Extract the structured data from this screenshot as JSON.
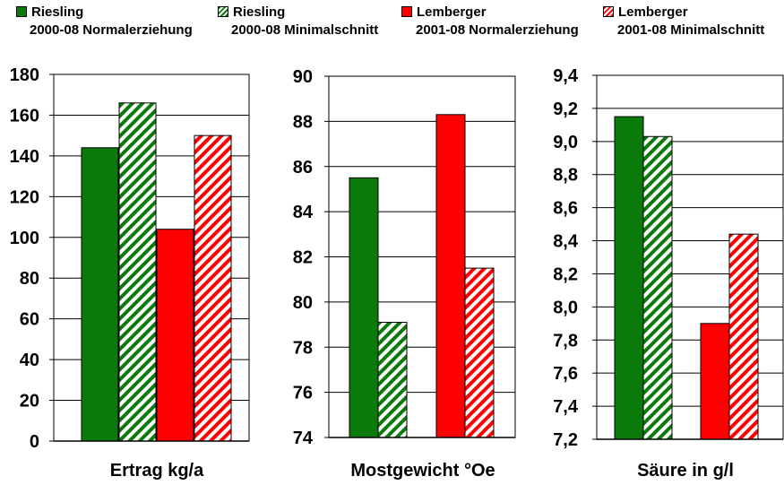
{
  "colors": {
    "riesling": "#0a7a0a",
    "lemberger": "#ff0000"
  },
  "legend": [
    {
      "name": "Riesling",
      "desc": "2000-08 Normalerziehung",
      "color": "#0a7a0a",
      "pattern": "solid"
    },
    {
      "name": "Riesling",
      "desc": "2000-08 Minimalschnitt",
      "color": "#0a7a0a",
      "pattern": "hatched"
    },
    {
      "name": "Lemberger",
      "desc": "2001-08 Normalerziehung",
      "color": "#ff0000",
      "pattern": "solid"
    },
    {
      "name": "Lemberger",
      "desc": "2001-08 Minimalschnitt",
      "color": "#ff0000",
      "pattern": "hatched"
    }
  ],
  "chart_data": [
    {
      "type": "bar",
      "title": "Ertrag kg/a",
      "ylim": [
        0,
        180
      ],
      "yticks": [
        "0",
        "20",
        "40",
        "60",
        "80",
        "100",
        "120",
        "140",
        "160",
        "180"
      ],
      "grid": true,
      "series": [
        {
          "name": "Riesling 2000-08 Normalerziehung",
          "value": 144
        },
        {
          "name": "Riesling 2000-08 Minimalschnitt",
          "value": 166
        },
        {
          "name": "Lemberger 2001-08 Normalerziehung",
          "value": 104
        },
        {
          "name": "Lemberger 2001-08 Minimalschnitt",
          "value": 150
        }
      ]
    },
    {
      "type": "bar",
      "title": "Mostgewicht °Oe",
      "ylim": [
        74,
        90
      ],
      "yticks": [
        "74",
        "76",
        "78",
        "80",
        "82",
        "84",
        "86",
        "88",
        "90"
      ],
      "grid": true,
      "series": [
        {
          "name": "Riesling 2000-08 Normalerziehung",
          "value": 85.5
        },
        {
          "name": "Riesling 2000-08 Minimalschnitt",
          "value": 79.1
        },
        {
          "name": "Lemberger 2001-08 Normalerziehung",
          "value": 88.3
        },
        {
          "name": "Lemberger 2001-08 Minimalschnitt",
          "value": 81.5
        }
      ]
    },
    {
      "type": "bar",
      "title": "Säure in g/l",
      "ylim": [
        7.2,
        9.4
      ],
      "yticks": [
        "7,2",
        "7,4",
        "7,6",
        "7,8",
        "8,0",
        "8,2",
        "8,4",
        "8,6",
        "8,8",
        "9,0",
        "9,2",
        "9,4"
      ],
      "grid": true,
      "series": [
        {
          "name": "Riesling 2000-08 Normalerziehung",
          "value": 9.15
        },
        {
          "name": "Riesling 2000-08 Minimalschnitt",
          "value": 9.03
        },
        {
          "name": "Lemberger 2001-08 Normalerziehung",
          "value": 7.9
        },
        {
          "name": "Lemberger 2001-08 Minimalschnitt",
          "value": 8.44
        }
      ]
    }
  ]
}
